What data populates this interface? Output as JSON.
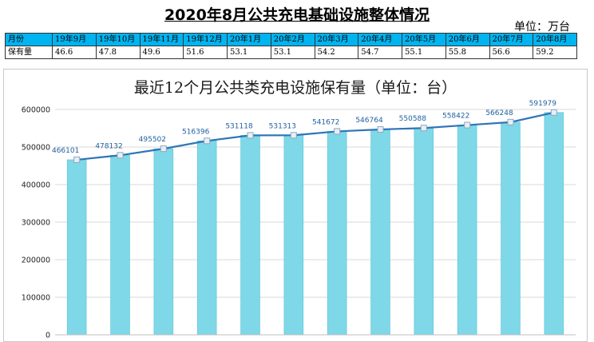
{
  "header": {
    "title": "2020年8月公共充电基础设施整体情况",
    "unit": "单位：万台"
  },
  "summary_table": {
    "row_labels": [
      "月份",
      "保有量"
    ],
    "months": [
      "19年9月",
      "19年10月",
      "19年11月",
      "19年12月",
      "20年1月",
      "20年2月",
      "20年3月",
      "20年4月",
      "20年5月",
      "20年6月",
      "20年7月",
      "20年8月"
    ],
    "values": [
      "46.6",
      "47.8",
      "49.6",
      "51.6",
      "53.1",
      "53.1",
      "54.2",
      "54.7",
      "55.1",
      "55.8",
      "56.6",
      "59.2"
    ]
  },
  "colors": {
    "header_row": "#00b4f0",
    "bar": "#7fd8e8",
    "line": "#2e75b6",
    "data_label": "#1f5f9f"
  },
  "chart_data": {
    "type": "bar",
    "title": "最近12个月公共类充电设施保有量（单位：台）",
    "categories": [
      "19年9月",
      "19年10月",
      "19年11月",
      "19年12月",
      "20年1月",
      "20年2月",
      "20年3月",
      "20年4月",
      "20年5月",
      "20年6月",
      "20年7月",
      "20年8月"
    ],
    "values": [
      466101,
      478132,
      495502,
      516396,
      531118,
      531313,
      541672,
      546764,
      550588,
      558422,
      566248,
      591979
    ],
    "overlay_line": true,
    "ylim": [
      0,
      600000
    ],
    "yticks": [
      0,
      100000,
      200000,
      300000,
      400000,
      500000,
      600000
    ],
    "ytick_labels": [
      "0",
      "100000",
      "200000",
      "300000",
      "400000",
      "500000",
      "600000"
    ],
    "xlabel": "",
    "ylabel": "",
    "grid": true,
    "legend": "none"
  }
}
